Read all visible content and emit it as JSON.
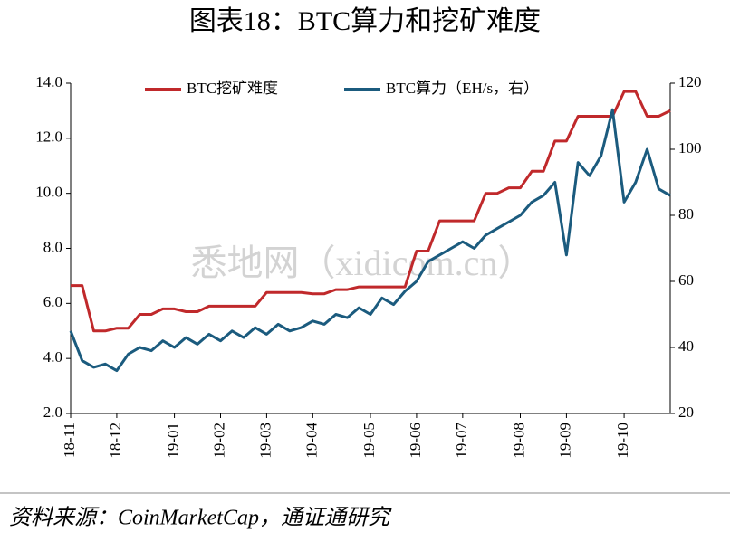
{
  "chart_data": {
    "type": "line",
    "title": "图表18：BTC算力和挖矿难度",
    "source": "资料来源：CoinMarketCap，通证通研究",
    "watermark": "悉地网（xidicom.cn）",
    "categories": [
      "18-11",
      null,
      null,
      null,
      "18-12",
      null,
      null,
      null,
      null,
      "19-01",
      null,
      null,
      null,
      "19-02",
      null,
      null,
      null,
      "19-03",
      null,
      null,
      null,
      "19-04",
      null,
      null,
      null,
      null,
      "19-05",
      null,
      null,
      null,
      "19-06",
      null,
      null,
      null,
      "19-07",
      null,
      null,
      null,
      null,
      "19-08",
      null,
      null,
      null,
      "19-09",
      null,
      null,
      null,
      null,
      "19-10",
      null,
      null,
      null,
      null
    ],
    "series": [
      {
        "name": "BTC挖矿难度",
        "color": "#c0292b",
        "axis": "y",
        "values": [
          6.65,
          6.65,
          5.0,
          5.0,
          5.1,
          5.1,
          5.6,
          5.6,
          5.8,
          5.8,
          5.7,
          5.7,
          5.9,
          5.9,
          5.9,
          5.9,
          5.9,
          6.4,
          6.4,
          6.4,
          6.4,
          6.35,
          6.35,
          6.5,
          6.5,
          6.6,
          6.6,
          6.6,
          6.6,
          6.6,
          7.9,
          7.9,
          9.0,
          9.0,
          9.0,
          9.0,
          10.0,
          10.0,
          10.2,
          10.2,
          10.8,
          10.8,
          11.9,
          11.9,
          12.8,
          12.8,
          12.8,
          12.8,
          13.7,
          13.7,
          12.8,
          12.8,
          13.0
        ]
      },
      {
        "name": "BTC算力（EH/s，右）",
        "color": "#1b5b7e",
        "axis": "y2",
        "values": [
          45,
          36,
          34,
          35,
          33,
          38,
          40,
          39,
          42,
          40,
          43,
          41,
          44,
          42,
          45,
          43,
          46,
          44,
          47,
          45,
          46,
          48,
          47,
          50,
          49,
          52,
          50,
          55,
          53,
          57,
          60,
          66,
          68,
          70,
          72,
          70,
          74,
          76,
          78,
          80,
          84,
          86,
          90,
          68,
          96,
          92,
          98,
          112,
          84,
          90,
          100,
          88,
          86
        ]
      }
    ],
    "ylim": [
      2,
      14
    ],
    "yticks": [
      {
        "value": 2,
        "label": "2.0"
      },
      {
        "value": 4,
        "label": "4.0"
      },
      {
        "value": 6,
        "label": "6.0"
      },
      {
        "value": 8,
        "label": "8.0"
      },
      {
        "value": 10,
        "label": "10.0"
      },
      {
        "value": 12,
        "label": "12.0"
      },
      {
        "value": 14,
        "label": "14.0"
      }
    ],
    "y2lim": [
      20,
      120
    ],
    "y2ticks": [
      20,
      40,
      60,
      80,
      100,
      120
    ],
    "legend": "top"
  }
}
